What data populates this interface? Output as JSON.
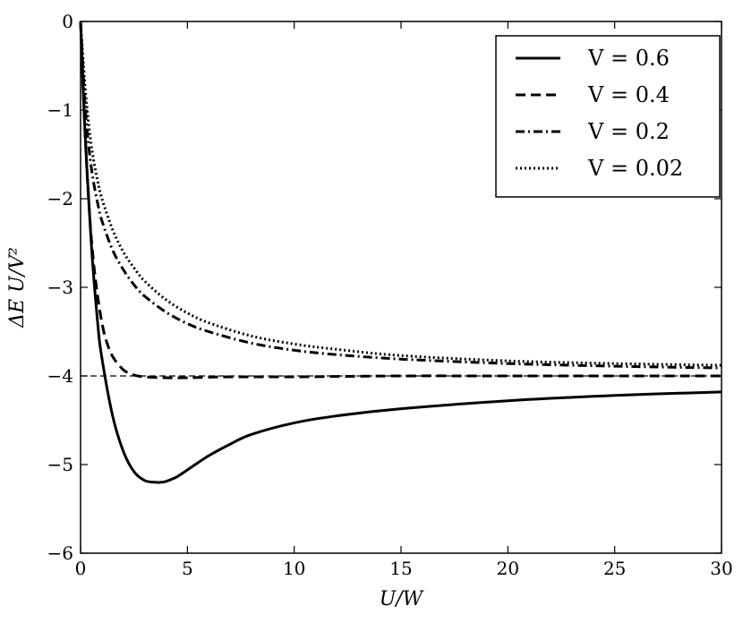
{
  "chart_data": {
    "type": "line",
    "title": "",
    "xlabel": "U/W",
    "ylabel": "ΔE U/V²",
    "xlim": [
      0,
      30
    ],
    "ylim": [
      -6,
      0
    ],
    "xticks": [
      0,
      5,
      10,
      15,
      20,
      25,
      30
    ],
    "xtick_labels": [
      "0",
      "5",
      "10",
      "15",
      "20",
      "25",
      "30"
    ],
    "yticks": [
      0,
      -1,
      -2,
      -3,
      -4,
      -5,
      -6
    ],
    "ytick_labels": [
      "0",
      "−1",
      "−2",
      "−3",
      "−4",
      "−5",
      "−6"
    ],
    "grid": false,
    "legend_position": "top-right",
    "reference_line": {
      "y": -4,
      "style": "dashed-thin"
    },
    "series": [
      {
        "name": "V = 0.6",
        "style": "solid",
        "x": [
          0,
          0.2,
          0.5,
          0.8,
          1.0,
          1.5,
          2.0,
          2.5,
          3.0,
          3.5,
          3.75,
          4.0,
          4.5,
          5.0,
          6.0,
          7.0,
          8.0,
          10.0,
          12.0,
          15.0,
          20.0,
          25.0,
          30.0
        ],
        "y": [
          0,
          -1.2,
          -2.5,
          -3.4,
          -3.8,
          -4.45,
          -4.85,
          -5.08,
          -5.18,
          -5.2,
          -5.2,
          -5.19,
          -5.14,
          -5.06,
          -4.9,
          -4.77,
          -4.66,
          -4.53,
          -4.45,
          -4.37,
          -4.28,
          -4.22,
          -4.18
        ]
      },
      {
        "name": "V = 0.4",
        "style": "dashed",
        "x": [
          0,
          0.2,
          0.4,
          0.6,
          0.8,
          1.0,
          1.2,
          1.5,
          2.0,
          2.5,
          3.0,
          4.0,
          5.0,
          7.0,
          10.0,
          15.0,
          20.0,
          30.0
        ],
        "y": [
          0,
          -1.2,
          -2.1,
          -2.7,
          -3.1,
          -3.4,
          -3.6,
          -3.78,
          -3.93,
          -3.99,
          -4.01,
          -4.02,
          -4.02,
          -4.01,
          -4.01,
          -4.0,
          -4.0,
          -4.0
        ]
      },
      {
        "name": "V = 0.2",
        "style": "dash-dot",
        "x": [
          0,
          0.2,
          0.4,
          0.6,
          0.8,
          1.0,
          1.5,
          2.0,
          2.5,
          3.0,
          4.0,
          5.0,
          6.0,
          8.0,
          10.0,
          12.0,
          15.0,
          20.0,
          25.0,
          30.0
        ],
        "y": [
          0,
          -0.9,
          -1.45,
          -1.8,
          -2.05,
          -2.25,
          -2.58,
          -2.8,
          -2.97,
          -3.1,
          -3.28,
          -3.41,
          -3.5,
          -3.63,
          -3.71,
          -3.76,
          -3.81,
          -3.86,
          -3.89,
          -3.91
        ]
      },
      {
        "name": "V = 0.02",
        "style": "dotted",
        "x": [
          0,
          0.2,
          0.4,
          0.6,
          0.8,
          1.0,
          1.5,
          2.0,
          2.5,
          3.0,
          4.0,
          5.0,
          6.0,
          8.0,
          10.0,
          12.0,
          15.0,
          20.0,
          25.0,
          30.0
        ],
        "y": [
          0,
          -0.7,
          -1.2,
          -1.55,
          -1.8,
          -2.0,
          -2.35,
          -2.6,
          -2.78,
          -2.93,
          -3.14,
          -3.29,
          -3.4,
          -3.55,
          -3.64,
          -3.7,
          -3.77,
          -3.83,
          -3.86,
          -3.88
        ]
      }
    ]
  }
}
